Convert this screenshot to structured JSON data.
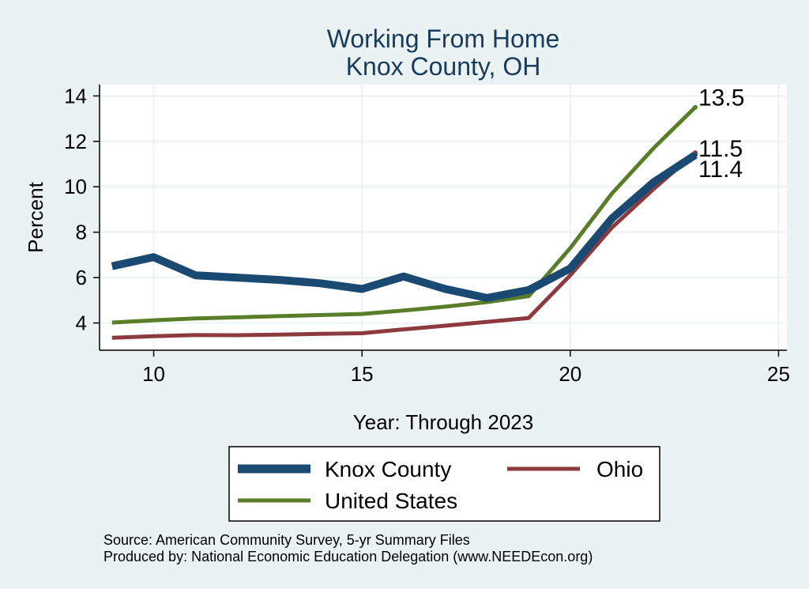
{
  "chart_data": {
    "type": "line",
    "title": [
      "Working From Home",
      "Knox County, OH"
    ],
    "xlabel": "Year: Through 2023",
    "ylabel": "Percent",
    "xlim": [
      8.7,
      25.2
    ],
    "ylim": [
      2.8,
      14.5
    ],
    "xticks": [
      10,
      15,
      20,
      25
    ],
    "yticks": [
      4,
      6,
      8,
      10,
      12,
      14
    ],
    "grid": true,
    "x": [
      9,
      10,
      11,
      12,
      13,
      14,
      15,
      16,
      17,
      18,
      19,
      20,
      21,
      22,
      23
    ],
    "series": [
      {
        "name": "Knox County",
        "color": "#1a4a72",
        "width": "thick",
        "values": [
          6.5,
          6.9,
          6.1,
          6.0,
          5.9,
          5.75,
          5.5,
          6.05,
          5.5,
          5.1,
          5.45,
          6.4,
          8.6,
          10.2,
          11.4
        ],
        "end_label": "11.4"
      },
      {
        "name": "Ohio",
        "color": "#8c3a3e",
        "width": "medium",
        "values": [
          3.35,
          3.42,
          3.47,
          3.46,
          3.49,
          3.52,
          3.55,
          3.72,
          3.88,
          4.05,
          4.22,
          6.1,
          8.2,
          9.9,
          11.5
        ],
        "end_label": "11.5"
      },
      {
        "name": "United States",
        "color": "#5a7d2a",
        "width": "medium",
        "values": [
          4.02,
          4.12,
          4.2,
          4.25,
          4.3,
          4.35,
          4.4,
          4.55,
          4.72,
          4.92,
          5.18,
          7.3,
          9.7,
          11.7,
          13.5
        ],
        "end_label": "13.5"
      }
    ],
    "legend": {
      "position": "bottom",
      "entries": [
        "Knox County",
        "Ohio",
        "United States"
      ]
    },
    "source_lines": [
      "Source: American Community Survey, 5-yr Summary Files",
      "Produced by: National Economic Education Delegation (www.NEEDEcon.org)"
    ]
  }
}
